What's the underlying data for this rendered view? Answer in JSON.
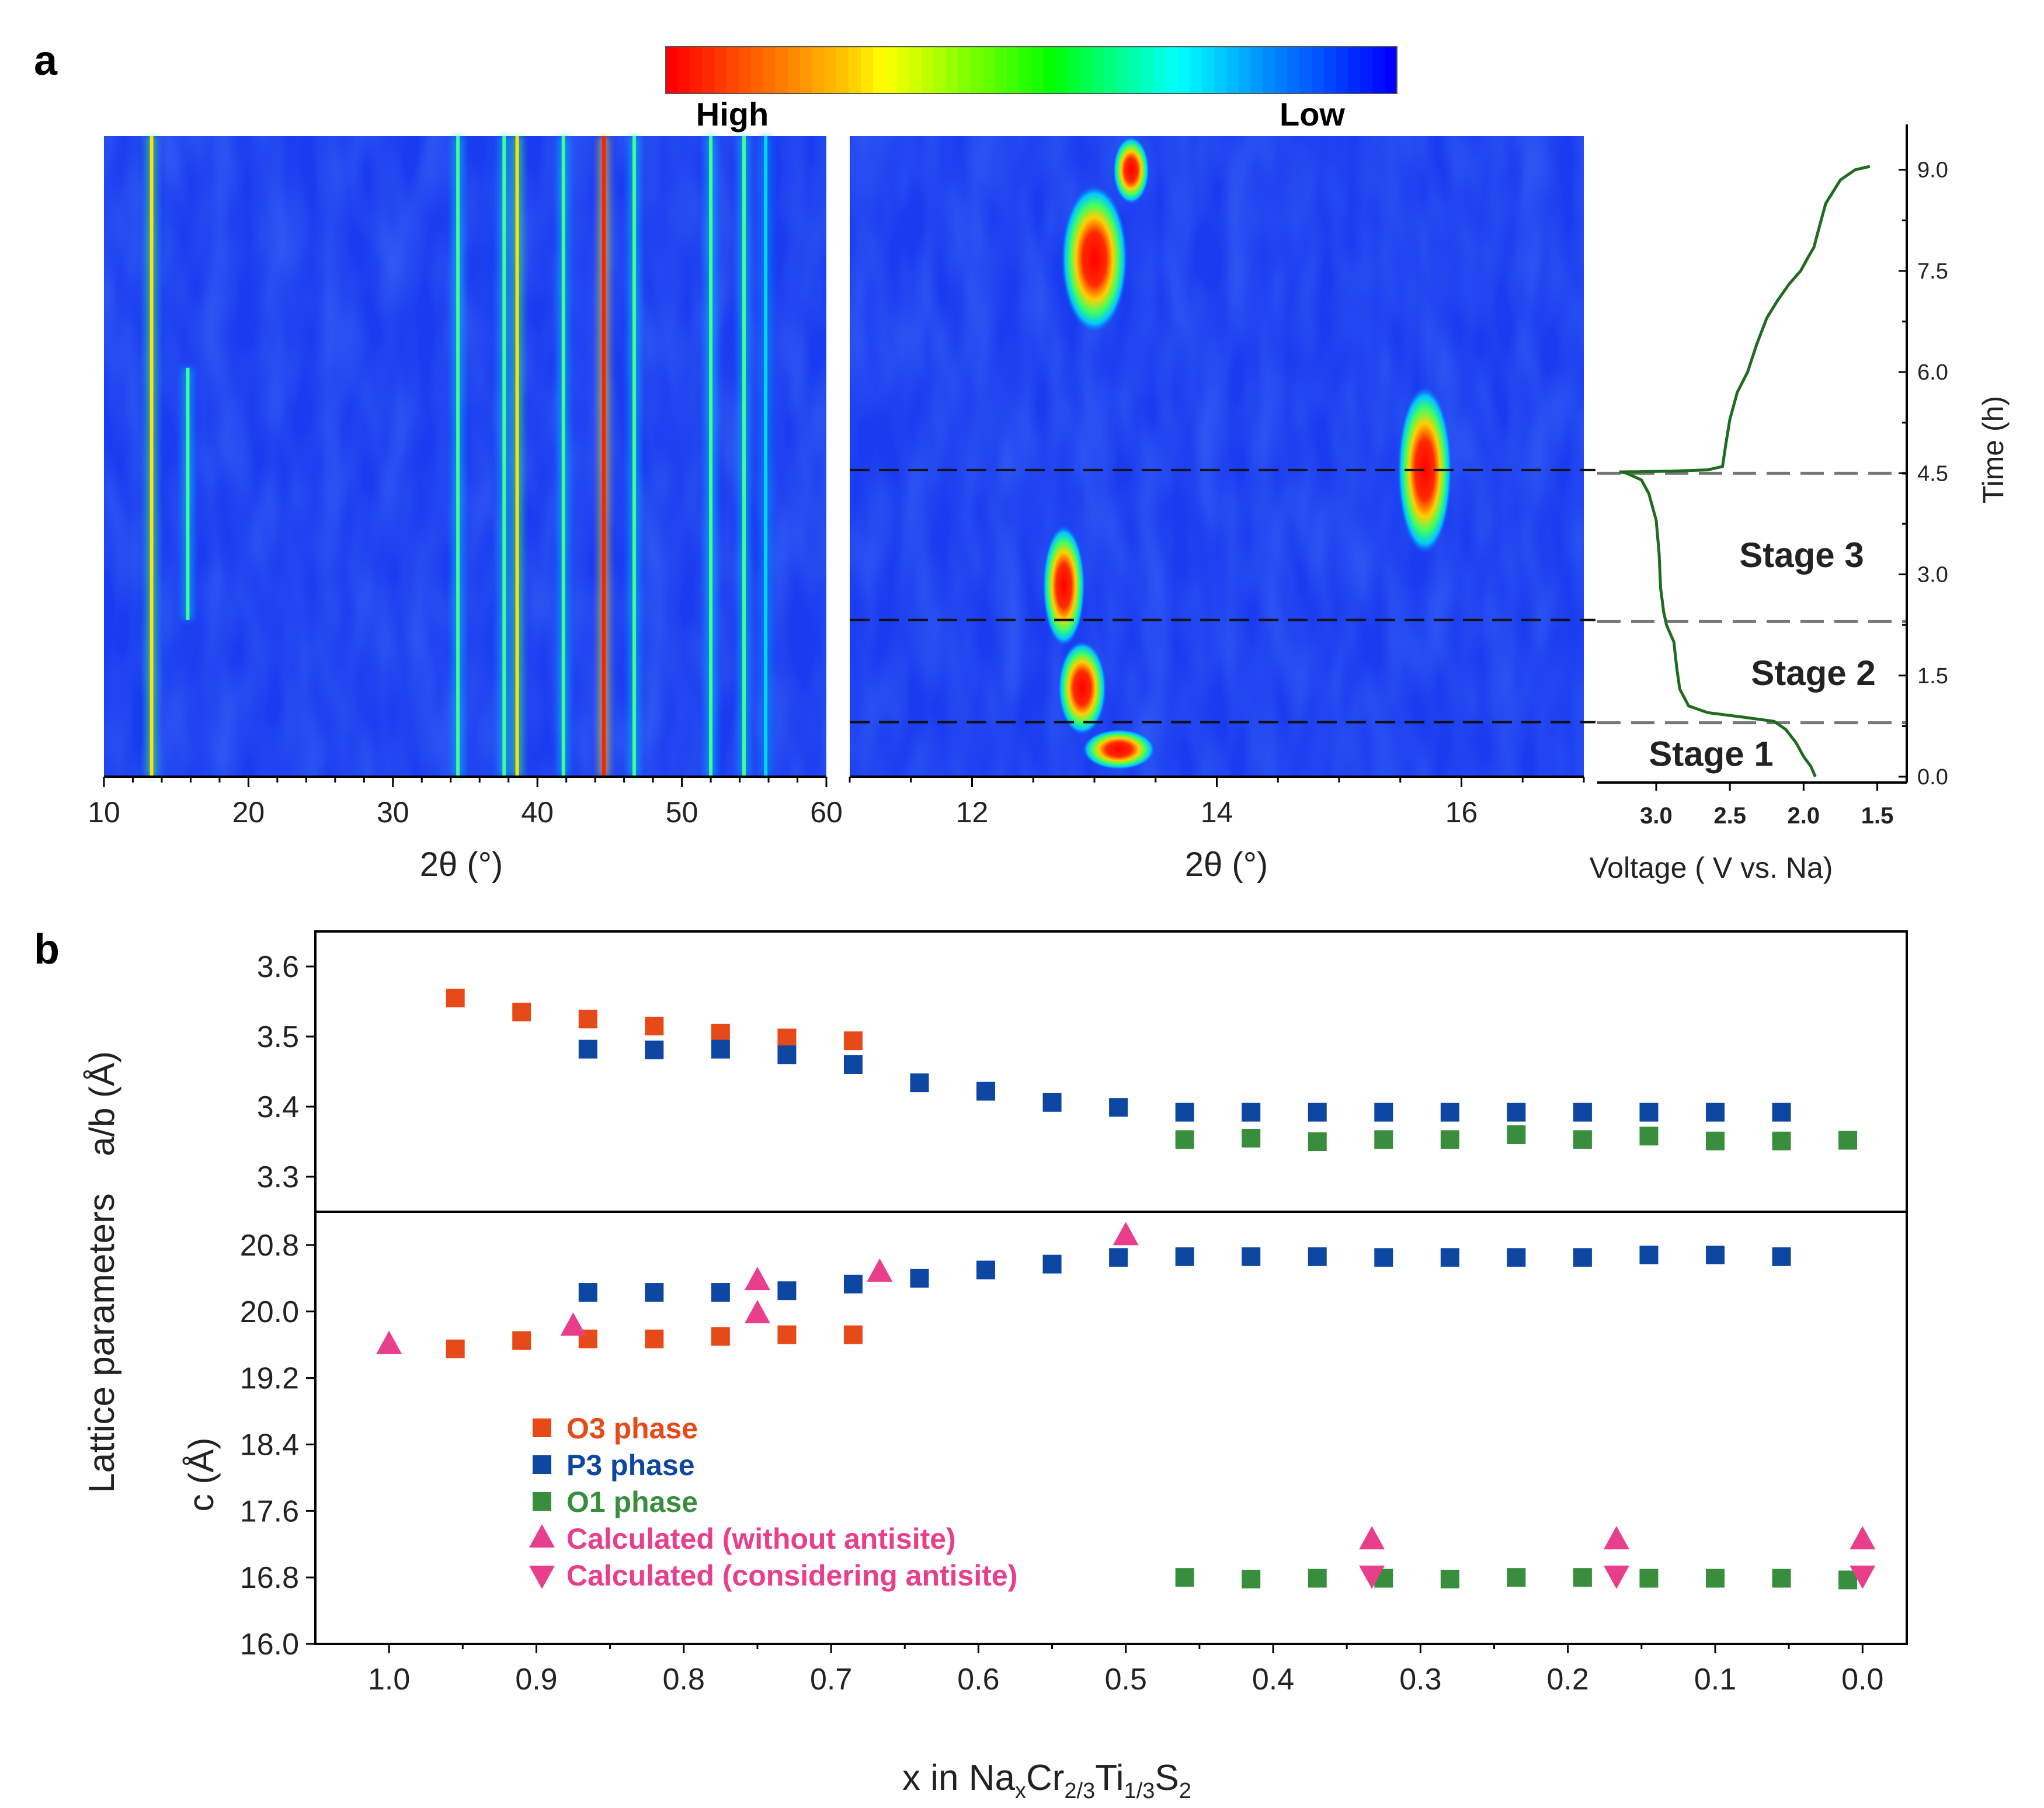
{
  "panel_labels": {
    "a": "a",
    "b": "b"
  },
  "colorbar": {
    "high_label": "High",
    "low_label": "Low",
    "colors": [
      "#ff0000",
      "#ff3000",
      "#ff6000",
      "#ff9000",
      "#ffc000",
      "#ffff00",
      "#c0ff00",
      "#80ff00",
      "#40ff00",
      "#00ff00",
      "#00ff60",
      "#00ffb0",
      "#00ffff",
      "#00c8ff",
      "#0090ff",
      "#0060ff",
      "#0030ff",
      "#0000ff"
    ]
  },
  "chart_data": [
    {
      "type": "heatmap",
      "id": "xrd-full",
      "xlabel": "2θ (°)",
      "xlim": [
        10,
        60
      ],
      "xticks": [
        10,
        20,
        30,
        40,
        50,
        60
      ],
      "ylim": [
        0,
        9.4
      ],
      "background": "#1a3cf0",
      "lines": [
        {
          "x": 13.3,
          "intensity": "high",
          "y0": 0,
          "y1": 9.4
        },
        {
          "x": 15.8,
          "intensity": "medium",
          "y0": 2.3,
          "y1": 6.0
        },
        {
          "x": 34.5,
          "intensity": "medium",
          "y0": 0,
          "y1": 9.4
        },
        {
          "x": 37.7,
          "intensity": "medium",
          "y0": 0,
          "y1": 9.4
        },
        {
          "x": 38.6,
          "intensity": "high",
          "y0": 0,
          "y1": 9.4
        },
        {
          "x": 41.8,
          "intensity": "medium",
          "y0": 0,
          "y1": 9.4
        },
        {
          "x": 44.6,
          "intensity": "highest",
          "y0": 0,
          "y1": 9.4
        },
        {
          "x": 46.7,
          "intensity": "medium",
          "y0": 0,
          "y1": 9.4
        },
        {
          "x": 52.0,
          "intensity": "medium",
          "y0": 0,
          "y1": 9.4
        },
        {
          "x": 54.3,
          "intensity": "medium",
          "y0": 0,
          "y1": 9.4
        },
        {
          "x": 55.8,
          "intensity": "low",
          "y0": 0,
          "y1": 9.4
        }
      ]
    },
    {
      "type": "heatmap",
      "id": "xrd-zoom",
      "xlabel": "2θ (°)",
      "xlim": [
        11.0,
        17.0
      ],
      "xticks": [
        12,
        14,
        16
      ],
      "ylim": [
        0,
        9.4
      ],
      "background": "#1a3cf0",
      "dashed_lines_time": [
        0.8,
        2.3,
        4.5
      ],
      "peaks": [
        {
          "x": 13.2,
          "y": 0.4,
          "w": 0.6,
          "h": 0.6
        },
        {
          "x": 12.9,
          "y": 1.3,
          "w": 0.4,
          "h": 1.4
        },
        {
          "x": 12.75,
          "y": 2.8,
          "w": 0.35,
          "h": 1.8
        },
        {
          "x": 13.0,
          "y": 7.6,
          "w": 0.55,
          "h": 2.2
        },
        {
          "x": 13.3,
          "y": 8.9,
          "w": 0.3,
          "h": 1.0
        },
        {
          "x": 15.7,
          "y": 4.5,
          "w": 0.45,
          "h": 2.5
        }
      ]
    },
    {
      "type": "line",
      "id": "voltage-profile",
      "xlabel": "Voltage ( V vs. Na)",
      "ylabel": "Time (h)",
      "xlim": [
        3.4,
        1.3
      ],
      "ylim": [
        0,
        9.5
      ],
      "xticks": [
        "3.0",
        "2.5",
        "2.0",
        "1.5"
      ],
      "yticks": [
        "0.0",
        "1.5",
        "3.0",
        "4.5",
        "6.0",
        "7.5",
        "9.0"
      ],
      "stages": [
        {
          "label": "Stage 1",
          "y": 0.35
        },
        {
          "label": "Stage 2",
          "y": 1.55
        },
        {
          "label": "Stage 3",
          "y": 3.3
        }
      ],
      "stage_boundaries": [
        0.8,
        2.3,
        4.5
      ],
      "series": [
        {
          "color": "#1f6b1f",
          "x": [
            1.92,
            1.95,
            2.0,
            2.05,
            2.12,
            2.2,
            2.4,
            2.65,
            2.78,
            2.84,
            2.86,
            2.88,
            2.93,
            2.95,
            2.97,
            2.98,
            3.0,
            3.05,
            3.1,
            3.2,
            3.25,
            2.9,
            2.65,
            2.55,
            2.53,
            2.5,
            2.45,
            2.38,
            2.32,
            2.25,
            2.18,
            2.1,
            2.02,
            1.97,
            1.93,
            1.9,
            1.85,
            1.75,
            1.65,
            1.55
          ],
          "y": [
            0.0,
            0.15,
            0.3,
            0.5,
            0.7,
            0.82,
            0.88,
            0.95,
            1.05,
            1.3,
            1.6,
            2.0,
            2.25,
            2.45,
            2.8,
            3.3,
            3.8,
            4.2,
            4.4,
            4.5,
            4.52,
            4.53,
            4.55,
            4.6,
            4.9,
            5.3,
            5.7,
            6.0,
            6.4,
            6.8,
            7.05,
            7.3,
            7.5,
            7.7,
            7.85,
            8.1,
            8.5,
            8.85,
            9.0,
            9.05
          ]
        }
      ]
    },
    {
      "type": "scatter",
      "id": "lattice-ab",
      "ylabel": "a/b  (Å)",
      "xlim": [
        1.05,
        -0.03
      ],
      "ylim": [
        3.25,
        3.65
      ],
      "yticks": [
        "3.3",
        "3.4",
        "3.5",
        "3.6"
      ],
      "series": [
        {
          "name": "O3 phase",
          "marker": "square",
          "color": "#e64a19",
          "x": [
            0.955,
            0.91,
            0.865,
            0.82,
            0.775,
            0.73,
            0.685
          ],
          "y": [
            3.555,
            3.535,
            3.525,
            3.515,
            3.505,
            3.498,
            3.494
          ]
        },
        {
          "name": "P3 phase",
          "marker": "square",
          "color": "#0d47a1",
          "x": [
            0.865,
            0.82,
            0.775,
            0.73,
            0.685,
            0.64,
            0.595,
            0.55,
            0.505,
            0.46,
            0.415,
            0.37,
            0.325,
            0.28,
            0.235,
            0.19,
            0.145,
            0.1,
            0.055
          ],
          "y": [
            3.482,
            3.481,
            3.482,
            3.474,
            3.46,
            3.434,
            3.422,
            3.406,
            3.399,
            3.392,
            3.392,
            3.392,
            3.392,
            3.392,
            3.392,
            3.392,
            3.392,
            3.392,
            3.392
          ]
        },
        {
          "name": "O1 phase",
          "marker": "square",
          "color": "#388e3c",
          "x": [
            0.46,
            0.415,
            0.37,
            0.325,
            0.28,
            0.235,
            0.19,
            0.145,
            0.1,
            0.055,
            0.01
          ],
          "y": [
            3.353,
            3.355,
            3.35,
            3.353,
            3.353,
            3.36,
            3.353,
            3.358,
            3.351,
            3.351,
            3.352
          ]
        }
      ]
    },
    {
      "type": "scatter",
      "id": "lattice-c",
      "ylabel": "c  (Å)",
      "xlabel_main": "x in Na",
      "xlabel_parts": [
        "x",
        "Cr",
        "2/3",
        "Ti",
        "1/3",
        "S",
        "2"
      ],
      "xlim": [
        1.05,
        -0.03
      ],
      "ylim": [
        16.0,
        21.2
      ],
      "yticks": [
        "16.0",
        "16.8",
        "17.6",
        "18.4",
        "19.2",
        "20.0",
        "20.8"
      ],
      "xticks": [
        "1.0",
        "0.9",
        "0.8",
        "0.7",
        "0.6",
        "0.5",
        "0.4",
        "0.3",
        "0.2",
        "0.1",
        "0.0"
      ],
      "shared_ylabel": "Lattice parameters",
      "series": [
        {
          "name": "O3 phase",
          "marker": "square",
          "color": "#e64a19",
          "x": [
            0.955,
            0.91,
            0.865,
            0.82,
            0.775,
            0.73,
            0.685
          ],
          "y": [
            19.55,
            19.65,
            19.67,
            19.67,
            19.7,
            19.72,
            19.72
          ]
        },
        {
          "name": "P3 phase",
          "marker": "square",
          "color": "#0d47a1",
          "x": [
            0.865,
            0.82,
            0.775,
            0.73,
            0.685,
            0.64,
            0.595,
            0.55,
            0.505,
            0.46,
            0.415,
            0.37,
            0.325,
            0.28,
            0.235,
            0.19,
            0.145,
            0.1,
            0.055
          ],
          "y": [
            20.23,
            20.23,
            20.23,
            20.25,
            20.33,
            20.4,
            20.5,
            20.57,
            20.65,
            20.66,
            20.66,
            20.66,
            20.65,
            20.65,
            20.65,
            20.65,
            20.68,
            20.68,
            20.66
          ]
        },
        {
          "name": "O1 phase",
          "marker": "square",
          "color": "#388e3c",
          "x": [
            0.46,
            0.415,
            0.37,
            0.325,
            0.28,
            0.235,
            0.19,
            0.145,
            0.1,
            0.055,
            0.01
          ],
          "y": [
            16.8,
            16.78,
            16.79,
            16.79,
            16.78,
            16.8,
            16.8,
            16.79,
            16.79,
            16.79,
            16.77
          ]
        },
        {
          "name": "Calculated (without antisite)",
          "marker": "triangle-up",
          "color": "#e83e8c",
          "x": [
            1.0,
            0.875,
            0.75,
            0.75,
            0.667,
            0.5,
            0.333,
            0.167,
            0.0
          ],
          "y": [
            19.6,
            19.82,
            20.37,
            19.97,
            20.47,
            20.91,
            17.25,
            17.25,
            17.25
          ]
        },
        {
          "name": "Calculated (considering antisite)",
          "marker": "triangle-down",
          "color": "#e83e8c",
          "x": [
            0.333,
            0.167,
            0.0
          ],
          "y": [
            16.83,
            16.83,
            16.83
          ]
        }
      ]
    }
  ]
}
